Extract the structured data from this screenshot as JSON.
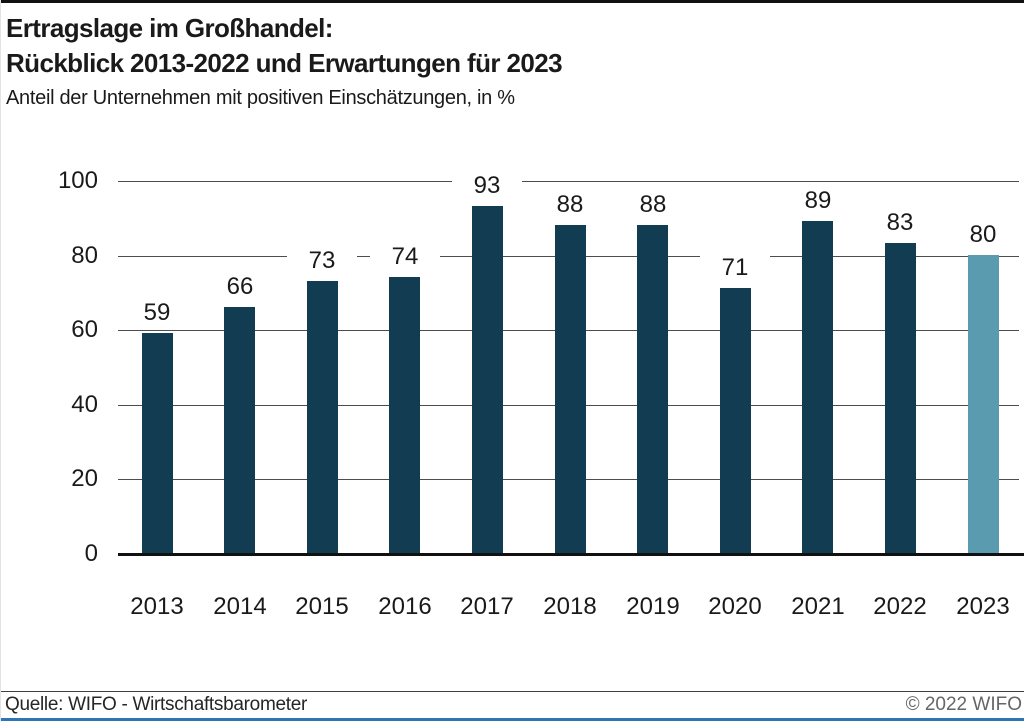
{
  "header": {
    "title_line1": "Ertragslage im Großhandel:",
    "title_line2": "Rückblick 2013-2022 und Erwartungen für 2023",
    "subtitle": "Anteil der Unternehmen mit positiven Einschätzungen, in %"
  },
  "chart_data": {
    "type": "bar",
    "title": "Ertragslage im Großhandel: Rückblick 2013-2022 und Erwartungen für 2023",
    "subtitle": "Anteil der Unternehmen mit positiven Einschätzungen, in %",
    "categories": [
      "2013",
      "2014",
      "2015",
      "2016",
      "2017",
      "2018",
      "2019",
      "2020",
      "2021",
      "2022",
      "2023"
    ],
    "values": [
      59,
      66,
      73,
      74,
      93,
      88,
      88,
      71,
      89,
      83,
      80
    ],
    "value_labels_shown": true,
    "highlight_index": 10,
    "highlight_note": "2023 bar (expectation) drawn in lighter color",
    "xlabel": "",
    "ylabel": "",
    "ylim": [
      0,
      100
    ],
    "yticks": [
      0,
      20,
      40,
      60,
      80,
      100
    ],
    "grid": true,
    "legend": "none",
    "colors": {
      "bar": "#123c52",
      "highlight_bar": "#5b9bb0",
      "gridline": "#4d4d4d",
      "axis": "#111111"
    }
  },
  "footer": {
    "source": "Quelle: WIFO - Wirtschaftsbarometer",
    "copyright": "© 2022 WIFO",
    "accent_line_color": "#2e75b6"
  }
}
